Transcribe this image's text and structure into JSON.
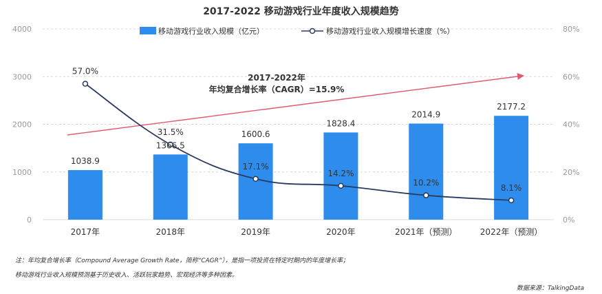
{
  "chart_data": {
    "type": "bar",
    "title": "2017-2022  移动游戏行业年度收入规模趋势",
    "categories": [
      "2017年",
      "2018年",
      "2019年",
      "2020年",
      "2021年（预测）",
      "2022年（预测）"
    ],
    "series": [
      {
        "name": "移动游戏行业收入规模（亿元）",
        "type": "bar",
        "axis": "left",
        "values": [
          1038.9,
          1366.5,
          1600.6,
          1828.4,
          2014.9,
          2177.2
        ],
        "labels": [
          "1038.9",
          "1366.5",
          "1600.6",
          "1828.4",
          "2014.9",
          "2177.2"
        ]
      },
      {
        "name": "移动游戏行业收入规模增长速度（%）",
        "type": "line",
        "axis": "right",
        "values": [
          57.0,
          31.5,
          17.1,
          14.2,
          10.2,
          8.1
        ],
        "labels": [
          "57.0%",
          "31.5%",
          "17.1%",
          "14.2%",
          "10.2%",
          "8.1%"
        ]
      }
    ],
    "y_left": {
      "min": 0,
      "max": 4000,
      "ticks": [
        "0",
        "1000",
        "2000",
        "3000",
        "4000"
      ]
    },
    "y_right": {
      "min": 0,
      "max": 80,
      "ticks": [
        "0%",
        "20%",
        "40%",
        "60%",
        "80%"
      ]
    },
    "legend_position": "top-center",
    "annotation": {
      "line1": "2017-2022年",
      "line2": "年均复合增长率（CAGR）=15.9%"
    },
    "colors": {
      "bar": "#2e8cec",
      "line": "#283a5e",
      "trend_arrow": "#e05a6e",
      "grid": "#d8d8d8",
      "axis_text": "#999999"
    }
  },
  "notes": {
    "line1": "注：年均复合增长率（Compound Average Growth Rate，简称“CAGR”），是指一项投资在特定时期内的年度增长率；",
    "line2": "移动游戏行业收入规模预测基于历史收入、活跃玩家趋势、宏观经济等多种因素。"
  },
  "source": "数据来源：TalkingData"
}
